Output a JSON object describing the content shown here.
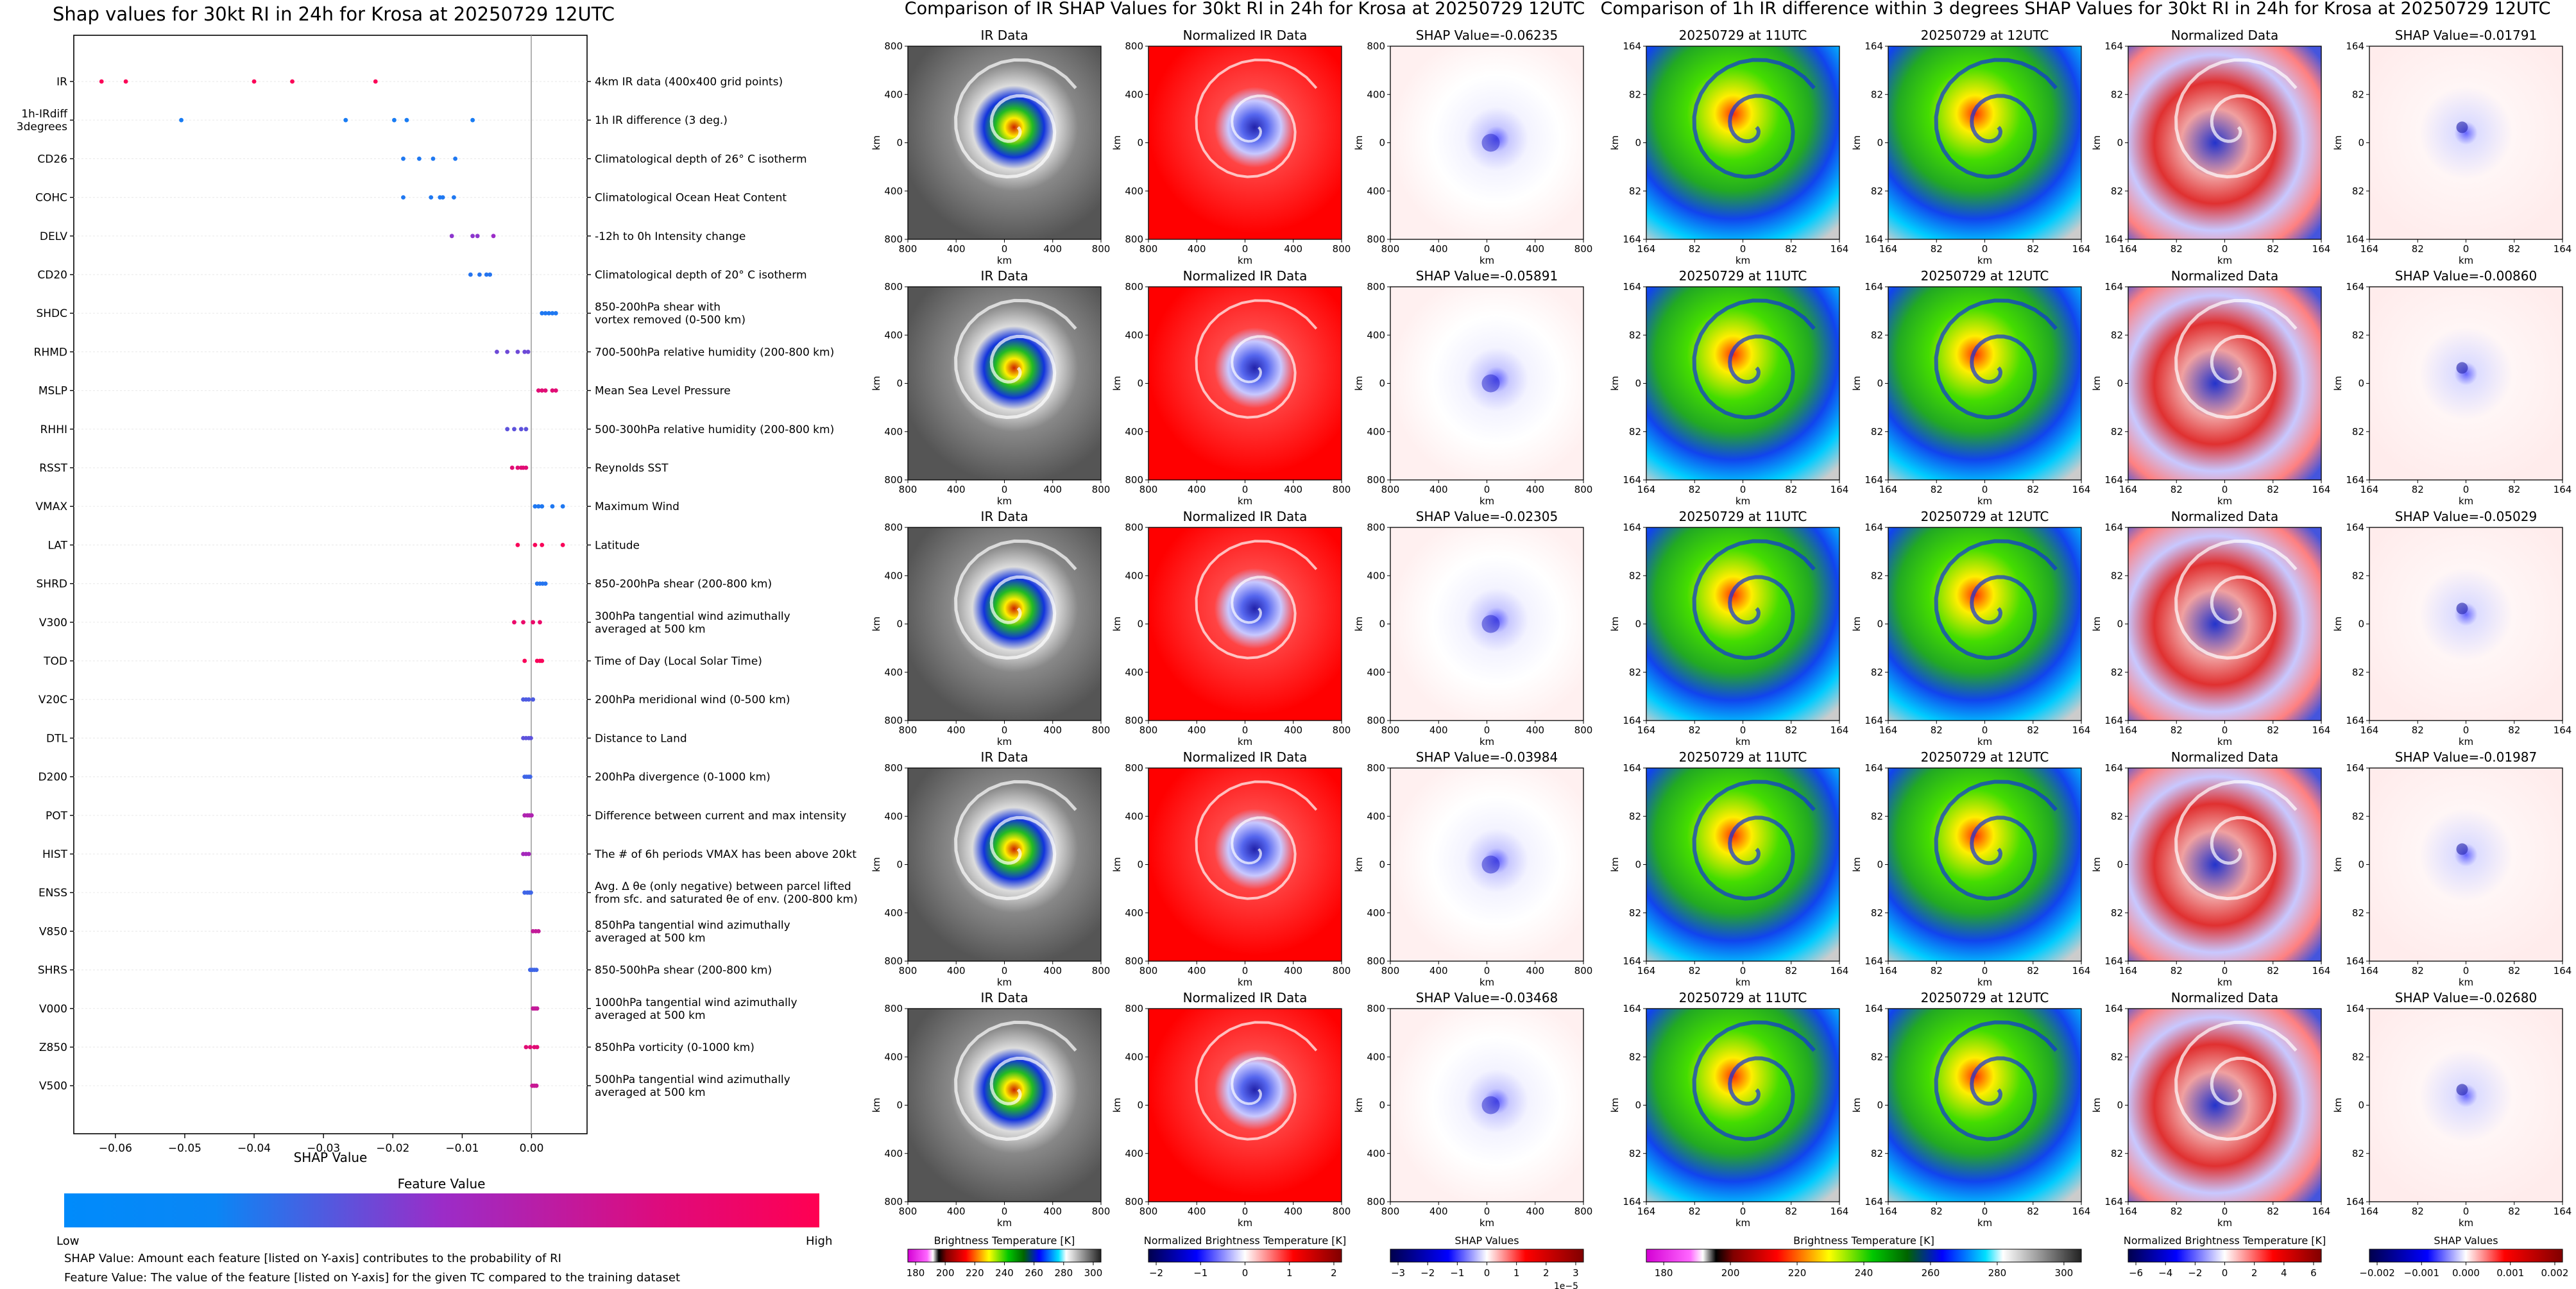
{
  "beeswarm": {
    "title": "Shap values for 30kt RI in 24h for Krosa at 20250729 12UTC",
    "xlabel": "SHAP Value",
    "xlim": [
      -0.066,
      0.008
    ],
    "xticks": [
      -0.06,
      -0.05,
      -0.04,
      -0.03,
      -0.02,
      -0.01,
      0.0
    ],
    "xtick_labels": [
      "−0.06",
      "−0.05",
      "−0.04",
      "−0.03",
      "−0.02",
      "−0.01",
      "0.00"
    ],
    "colorbar_title": "Feature Value",
    "colorbar_low": "Low",
    "colorbar_high": "High",
    "colors": {
      "low": "#008bfb",
      "high": "#ff0052"
    },
    "features": [
      {
        "code": "IR",
        "desc": "4km IR data (400x400 grid points)",
        "shap": [
          -0.062,
          -0.0585,
          -0.04,
          -0.0345,
          -0.0225
        ],
        "fv": [
          0.98,
          0.98,
          0.98,
          0.98,
          0.98
        ]
      },
      {
        "code": "1h-IRdiff\n3degrees",
        "desc": "1h IR difference (3 deg.)",
        "shap": [
          -0.0505,
          -0.0268,
          -0.0198,
          -0.018,
          -0.0085
        ],
        "fv": [
          0.08,
          0.08,
          0.08,
          0.08,
          0.08
        ]
      },
      {
        "code": "CD26",
        "desc": "Climatological depth of 26° C isotherm",
        "shap": [
          -0.0185,
          -0.0162,
          -0.0142,
          -0.011
        ],
        "fv": [
          0.1,
          0.1,
          0.1,
          0.1
        ]
      },
      {
        "code": "COHC",
        "desc": "Climatological Ocean Heat Content",
        "shap": [
          -0.0185,
          -0.0145,
          -0.0132,
          -0.0128,
          -0.0112
        ],
        "fv": [
          0.1,
          0.1,
          0.1,
          0.1,
          0.1
        ]
      },
      {
        "code": "DELV",
        "desc": "-12h to 0h Intensity change",
        "shap": [
          -0.0115,
          -0.0085,
          -0.0078,
          -0.0055
        ],
        "fv": [
          0.45,
          0.45,
          0.45,
          0.5
        ]
      },
      {
        "code": "CD20",
        "desc": "Climatological depth of 20° C isotherm",
        "shap": [
          -0.0088,
          -0.0075,
          -0.0065,
          -0.006
        ],
        "fv": [
          0.12,
          0.12,
          0.12,
          0.12
        ]
      },
      {
        "code": "SHDC",
        "desc": "850-200hPa shear with\nvortex removed (0-500 km)",
        "shap": [
          0.0015,
          0.002,
          0.0025,
          0.003,
          0.0035
        ],
        "fv": [
          0.1,
          0.1,
          0.1,
          0.1,
          0.1
        ]
      },
      {
        "code": "RHMD",
        "desc": "700-500hPa relative humidity (200-800 km)",
        "shap": [
          -0.005,
          -0.0035,
          -0.002,
          -0.001,
          -0.0005
        ],
        "fv": [
          0.35,
          0.35,
          0.35,
          0.35,
          0.35
        ]
      },
      {
        "code": "MSLP",
        "desc": "Mean Sea Level Pressure",
        "shap": [
          0.001,
          0.0015,
          0.002,
          0.003,
          0.0035
        ],
        "fv": [
          0.85,
          0.85,
          0.85,
          0.85,
          0.85
        ]
      },
      {
        "code": "RHHI",
        "desc": "500-300hPa relative humidity (200-800 km)",
        "shap": [
          -0.0035,
          -0.0025,
          -0.0015,
          -0.0008
        ],
        "fv": [
          0.3,
          0.3,
          0.3,
          0.3
        ]
      },
      {
        "code": "RSST",
        "desc": "Reynolds SST",
        "shap": [
          -0.0028,
          -0.002,
          -0.0015,
          -0.0012,
          -0.0008
        ],
        "fv": [
          0.85,
          0.85,
          0.85,
          0.85,
          0.85
        ]
      },
      {
        "code": "VMAX",
        "desc": "Maximum Wind",
        "shap": [
          0.0005,
          0.001,
          0.0015,
          0.003,
          0.0045
        ],
        "fv": [
          0.1,
          0.1,
          0.1,
          0.1,
          0.1
        ]
      },
      {
        "code": "LAT",
        "desc": "Latitude",
        "shap": [
          -0.002,
          0.0005,
          0.0015,
          0.0045
        ],
        "fv": [
          0.97,
          0.97,
          0.97,
          0.97
        ]
      },
      {
        "code": "SHRD",
        "desc": "850-200hPa shear (200-800 km)",
        "shap": [
          0.0008,
          0.0012,
          0.0016,
          0.002
        ],
        "fv": [
          0.12,
          0.12,
          0.12,
          0.12
        ]
      },
      {
        "code": "V300",
        "desc": "300hPa tangential wind azimuthally\naveraged at 500 km",
        "shap": [
          -0.0025,
          -0.0012,
          0.0002,
          0.0012
        ],
        "fv": [
          0.9,
          0.9,
          0.9,
          0.9
        ]
      },
      {
        "code": "TOD",
        "desc": "Time of Day (Local Solar Time)",
        "shap": [
          -0.001,
          0.0008,
          0.0012,
          0.0015
        ],
        "fv": [
          0.97,
          0.97,
          0.97,
          0.97
        ]
      },
      {
        "code": "V20C",
        "desc": "200hPa meridional wind (0-500 km)",
        "shap": [
          -0.0012,
          -0.0008,
          -0.0004,
          0.0002
        ],
        "fv": [
          0.25,
          0.25,
          0.25,
          0.25
        ]
      },
      {
        "code": "DTL",
        "desc": "Distance to Land",
        "shap": [
          -0.0012,
          -0.0008,
          -0.0004,
          -0.0001
        ],
        "fv": [
          0.3,
          0.3,
          0.3,
          0.3
        ]
      },
      {
        "code": "D200",
        "desc": "200hPa divergence (0-1000 km)",
        "shap": [
          -0.001,
          -0.0007,
          -0.0004,
          -0.0002
        ],
        "fv": [
          0.2,
          0.2,
          0.2,
          0.2
        ]
      },
      {
        "code": "POT",
        "desc": "Difference between current and max intensity",
        "shap": [
          -0.001,
          -0.0006,
          -0.0003,
          0.0
        ],
        "fv": [
          0.6,
          0.6,
          0.6,
          0.6
        ]
      },
      {
        "code": "HIST",
        "desc": "The # of 6h periods VMAX has been above 20kt",
        "shap": [
          -0.0012,
          -0.0008,
          -0.0004
        ],
        "fv": [
          0.55,
          0.55,
          0.55
        ]
      },
      {
        "code": "ENSS",
        "desc": "Avg. Δ θe (only negative) between parcel lifted\nfrom sfc. and saturated θe of env. (200-800 km)",
        "shap": [
          -0.001,
          -0.0006,
          -0.0003,
          -0.0001
        ],
        "fv": [
          0.2,
          0.2,
          0.2,
          0.2
        ]
      },
      {
        "code": "V850",
        "desc": "850hPa tangential wind azimuthally\naveraged at 500 km",
        "shap": [
          0.0002,
          0.0006,
          0.001
        ],
        "fv": [
          0.7,
          0.7,
          0.7
        ]
      },
      {
        "code": "SHRS",
        "desc": "850-500hPa shear (200-800 km)",
        "shap": [
          -0.0002,
          0.0001,
          0.0004,
          0.0007
        ],
        "fv": [
          0.2,
          0.2,
          0.2,
          0.2
        ]
      },
      {
        "code": "V000",
        "desc": "1000hPa tangential wind azimuthally\naveraged at 500 km",
        "shap": [
          0.0002,
          0.0005,
          0.0008
        ],
        "fv": [
          0.7,
          0.7,
          0.7
        ]
      },
      {
        "code": "Z850",
        "desc": "850hPa vorticity (0-1000 km)",
        "shap": [
          -0.0008,
          -0.0002,
          0.0004,
          0.0008
        ],
        "fv": [
          0.85,
          0.85,
          0.85,
          0.85
        ]
      },
      {
        "code": "V500",
        "desc": "500hPa tangential wind azimuthally\naveraged at 500 km",
        "shap": [
          0.0001,
          0.0004,
          0.0007
        ],
        "fv": [
          0.72,
          0.72,
          0.72
        ]
      }
    ],
    "notes": [
      "SHAP Value: Amount each feature [listed on Y-axis] contributes to the probability of RI",
      "Feature Value: The value of the feature [listed on Y-axis] for the given TC compared to the training dataset"
    ]
  },
  "group1": {
    "title": "Comparison of IR SHAP Values for 30kt RI in 24h for Krosa at 20250729 12UTC",
    "col_titles": [
      "IR Data",
      "Normalized IR Data"
    ],
    "shap_values": [
      "SHAP Value=-0.06235",
      "SHAP Value=-0.05891",
      "SHAP Value=-0.02305",
      "SHAP Value=-0.03984",
      "SHAP Value=-0.03468"
    ],
    "ticks": [
      "800",
      "400",
      "0",
      "400",
      "800"
    ],
    "axis_label": "km",
    "colorbars": [
      {
        "label": "Brightness Temperature [K]",
        "ticks": [
          "180",
          "200",
          "220",
          "240",
          "260",
          "280",
          "300"
        ]
      },
      {
        "label": "Normalized Brightness Temperature [K]",
        "ticks": [
          "−2",
          "−1",
          "0",
          "1",
          "2"
        ]
      },
      {
        "label": "SHAP Values",
        "ticks": [
          "−3",
          "−2",
          "−1",
          "0",
          "1",
          "2",
          "3"
        ],
        "offset": "1e−5"
      }
    ]
  },
  "group2": {
    "title": "Comparison of 1h IR difference within 3 degrees SHAP Values for 30kt RI in 24h for Krosa at 20250729 12UTC",
    "col_titles": [
      "20250729 at 11UTC",
      "20250729 at 12UTC",
      "Normalized Data"
    ],
    "shap_values": [
      "SHAP Value=-0.01791",
      "SHAP Value=-0.00860",
      "SHAP Value=-0.05029",
      "SHAP Value=-0.01987",
      "SHAP Value=-0.02680"
    ],
    "ticks": [
      "164",
      "82",
      "0",
      "82",
      "164"
    ],
    "axis_label": "km",
    "colorbars": [
      {
        "label": "Brightness Temperature [K]",
        "ticks": [
          "180",
          "200",
          "220",
          "240",
          "260",
          "280",
          "300"
        ]
      },
      {
        "label": "Normalized Brightness Temperature [K]",
        "ticks": [
          "−6",
          "−4",
          "−2",
          "0",
          "2",
          "4",
          "6"
        ]
      },
      {
        "label": "SHAP Values",
        "ticks": [
          "−0.002",
          "−0.001",
          "0.000",
          "0.001",
          "0.002"
        ]
      }
    ]
  },
  "chart_data": [
    {
      "type": "scatter",
      "title": "Shap values for 30kt RI in 24h for Krosa at 20250729 12UTC",
      "xlabel": "SHAP Value",
      "ylabel": "",
      "xlim": [
        -0.066,
        0.008
      ],
      "categories": [
        "IR",
        "1h-IRdiff 3degrees",
        "CD26",
        "COHC",
        "DELV",
        "CD20",
        "SHDC",
        "RHMD",
        "MSLP",
        "RHHI",
        "RSST",
        "VMAX",
        "LAT",
        "SHRD",
        "V300",
        "TOD",
        "V20C",
        "DTL",
        "D200",
        "POT",
        "HIST",
        "ENSS",
        "V850",
        "SHRS",
        "V000",
        "Z850",
        "V500"
      ],
      "legend": "Feature Value colorbar (Low to High)"
    },
    {
      "type": "heatmap",
      "title": "Comparison of IR SHAP Values for 30kt RI in 24h for Krosa at 20250729 12UTC",
      "panels": [
        "IR Data",
        "Normalized IR Data",
        "SHAP Value"
      ],
      "x_range_km": [
        -800,
        800
      ],
      "y_range_km": [
        -800,
        800
      ]
    },
    {
      "type": "heatmap",
      "title": "Comparison of 1h IR difference within 3 degrees SHAP Values for 30kt RI in 24h for Krosa at 20250729 12UTC",
      "panels": [
        "20250729 at 11UTC",
        "20250729 at 12UTC",
        "Normalized Data",
        "SHAP Value"
      ],
      "x_range_km": [
        -164,
        164
      ],
      "y_range_km": [
        -164,
        164
      ]
    }
  ]
}
